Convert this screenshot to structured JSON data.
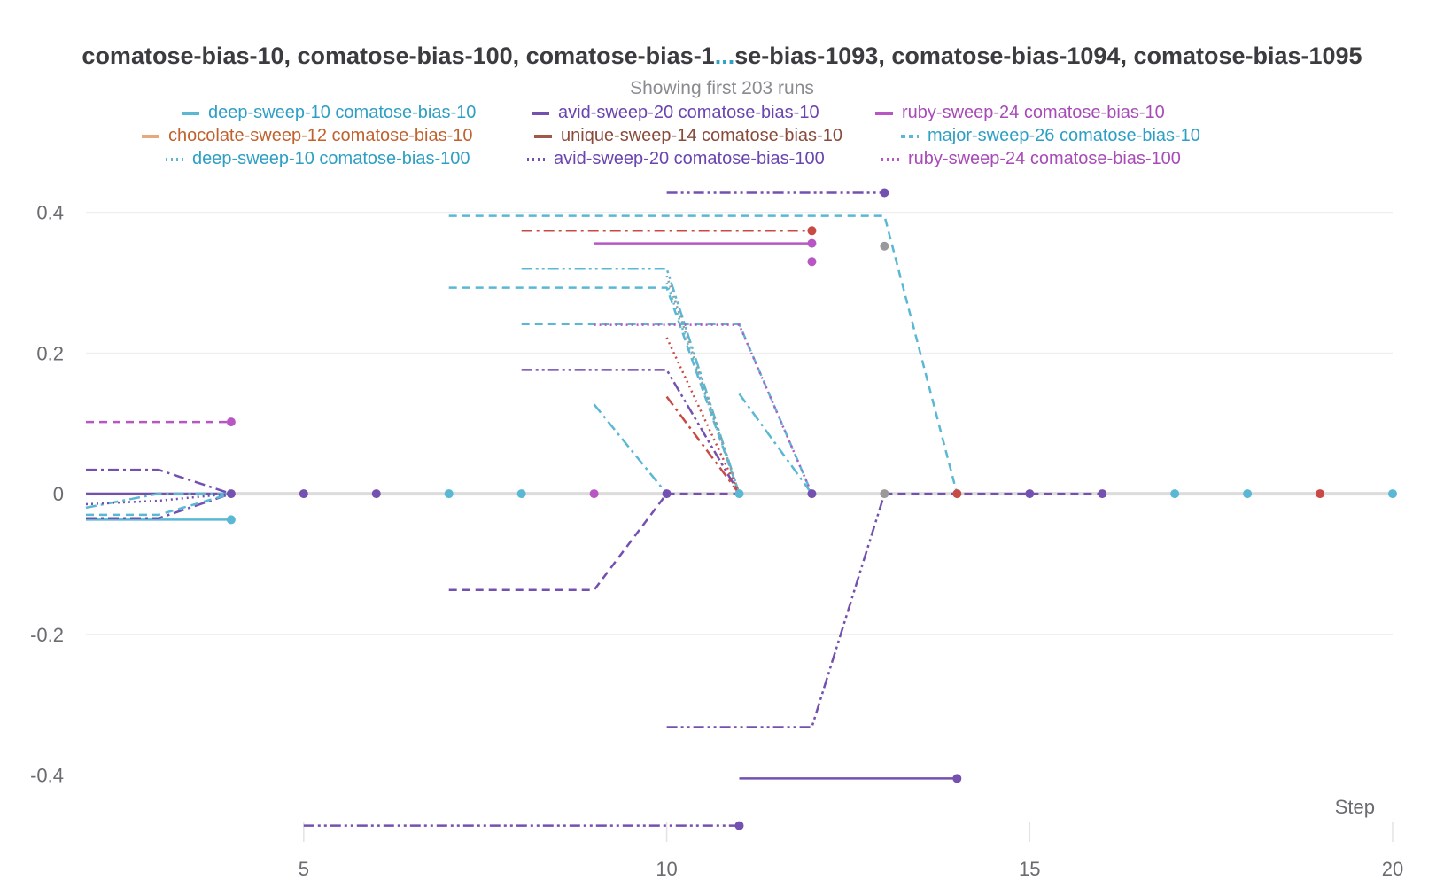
{
  "title_parts": {
    "left": "comatose-bias-10, comatose-bias-100, comatose-bias-1",
    "ellipsis": "...",
    "right": "se-bias-1093, comatose-bias-1094, comatose-bias-1095"
  },
  "subtitle": "Showing first 203 runs",
  "legend": [
    {
      "label": "deep-sweep-10 comatose-bias-10",
      "color": "#5bb8d4",
      "dash": "solid"
    },
    {
      "label": "avid-sweep-20 comatose-bias-10",
      "color": "#7451b0",
      "dash": "solid"
    },
    {
      "label": "ruby-sweep-24 comatose-bias-10",
      "color": "#b857c4",
      "dash": "solid"
    },
    {
      "label": "chocolate-sweep-12 comatose-bias-10",
      "color": "#e8a87c",
      "dash": "solid"
    },
    {
      "label": "unique-sweep-14 comatose-bias-10",
      "color": "#a05a4a",
      "dash": "solid"
    },
    {
      "label": "major-sweep-26 comatose-bias-10",
      "color": "#5bb8d4",
      "dash": "dashed"
    },
    {
      "label": "deep-sweep-10 comatose-bias-100",
      "color": "#5bb8d4",
      "dash": "dotted"
    },
    {
      "label": "avid-sweep-20 comatose-bias-100",
      "color": "#7451b0",
      "dash": "dotted"
    },
    {
      "label": "ruby-sweep-24 comatose-bias-100",
      "color": "#b857c4",
      "dash": "dotted"
    }
  ],
  "legend_text_colors": [
    "#2e9fc4",
    "#6a45b0",
    "#a84bb8",
    "#c0622e",
    "#8a4a3a",
    "#2e9fc4",
    "#2e9fc4",
    "#6a45b0",
    "#a84bb8"
  ],
  "chart_data": {
    "type": "line",
    "xlabel": "Step",
    "ylabel": "",
    "xlim": [
      2,
      20
    ],
    "ylim": [
      -0.47,
      0.45
    ],
    "x_ticks": [
      5,
      10,
      15,
      20
    ],
    "y_ticks": [
      -0.4,
      -0.2,
      0,
      0.2,
      0.4
    ],
    "y_tick_labels": [
      "-0.4",
      "-0.2",
      "0",
      "0.2",
      "0.4"
    ],
    "grid": true,
    "series": [
      {
        "color": "#5bb8d4",
        "dash": "solid",
        "points": [
          [
            2,
            -0.037
          ],
          [
            4,
            -0.037
          ]
        ]
      },
      {
        "color": "#7451b0",
        "dash": "solid",
        "points": [
          [
            2,
            0
          ],
          [
            4,
            0
          ]
        ]
      },
      {
        "color": "#7451b0",
        "dash": "dashdot",
        "points": [
          [
            2,
            0.034
          ],
          [
            3,
            0.034
          ],
          [
            4,
            0
          ]
        ]
      },
      {
        "color": "#7451b0",
        "dash": "dashdot",
        "points": [
          [
            2,
            -0.035
          ],
          [
            3,
            -0.035
          ],
          [
            4,
            0
          ]
        ]
      },
      {
        "color": "#5bb8d4",
        "dash": "dashed",
        "points": [
          [
            2,
            -0.03
          ],
          [
            3,
            -0.03
          ],
          [
            4,
            0
          ]
        ]
      },
      {
        "color": "#5bb8d4",
        "dash": "dashdot",
        "points": [
          [
            2,
            -0.02
          ],
          [
            3,
            0
          ],
          [
            4,
            0
          ]
        ]
      },
      {
        "color": "#7451b0",
        "dash": "dotted",
        "points": [
          [
            2,
            -0.015
          ],
          [
            3,
            -0.01
          ],
          [
            4,
            0
          ]
        ]
      },
      {
        "color": "#b857c4",
        "dash": "dashed",
        "points": [
          [
            2,
            0.102
          ],
          [
            4,
            0.102
          ]
        ]
      },
      {
        "color": "#7451b0",
        "dash": "dashdotdot",
        "points": [
          [
            5,
            -0.472
          ],
          [
            11,
            -0.472
          ]
        ]
      },
      {
        "color": "#7451b0",
        "dash": "dashed",
        "points": [
          [
            7,
            -0.137
          ],
          [
            9,
            -0.137
          ],
          [
            10,
            0
          ],
          [
            11,
            0
          ]
        ]
      },
      {
        "color": "#5bb8d4",
        "dash": "dashed",
        "points": [
          [
            7,
            0.395
          ],
          [
            13,
            0.395
          ],
          [
            14,
            0
          ]
        ]
      },
      {
        "color": "#5bb8d4",
        "dash": "dashed",
        "points": [
          [
            7,
            0.293
          ],
          [
            10,
            0.293
          ],
          [
            11,
            0
          ]
        ]
      },
      {
        "color": "#5bb8d4",
        "dash": "dashed",
        "points": [
          [
            8,
            0.241
          ],
          [
            11,
            0.241
          ],
          [
            12,
            0
          ]
        ]
      },
      {
        "color": "#5bb8d4",
        "dash": "dashdotdot",
        "points": [
          [
            8,
            0.32
          ],
          [
            10,
            0.32
          ],
          [
            11,
            0
          ]
        ]
      },
      {
        "color": "#7451b0",
        "dash": "dashdotdot",
        "points": [
          [
            8,
            0.176
          ],
          [
            10,
            0.176
          ],
          [
            11,
            0
          ]
        ]
      },
      {
        "color": "#c94a45",
        "dash": "dashdot",
        "points": [
          [
            8,
            0.374
          ],
          [
            12,
            0.374
          ]
        ]
      },
      {
        "color": "#b857c4",
        "dash": "solid",
        "points": [
          [
            9,
            0.356
          ],
          [
            12,
            0.356
          ]
        ]
      },
      {
        "color": "#b857c4",
        "dash": "dotted",
        "points": [
          [
            9,
            0.24
          ],
          [
            11,
            0.24
          ],
          [
            12,
            0
          ]
        ]
      },
      {
        "color": "#5bb8d4",
        "dash": "dashdot",
        "points": [
          [
            9,
            0.127
          ],
          [
            10,
            0
          ]
        ]
      },
      {
        "color": "#7451b0",
        "dash": "dashdotdot",
        "points": [
          [
            10,
            0.428
          ],
          [
            13,
            0.428
          ]
        ]
      },
      {
        "color": "#5bb8d4",
        "dash": "dotted",
        "points": [
          [
            10,
            0.3
          ],
          [
            11,
            0
          ]
        ]
      },
      {
        "color": "#9a9a9a",
        "dash": "dotted",
        "points": [
          [
            10,
            0.31
          ],
          [
            11,
            0
          ]
        ]
      },
      {
        "color": "#c94a45",
        "dash": "dotted",
        "points": [
          [
            10,
            0.222
          ],
          [
            11,
            0
          ]
        ]
      },
      {
        "color": "#c94a45",
        "dash": "dashdot",
        "points": [
          [
            10,
            0.138
          ],
          [
            11,
            0
          ]
        ]
      },
      {
        "color": "#7451b0",
        "dash": "dashdotdot",
        "points": [
          [
            10,
            -0.332
          ],
          [
            12,
            -0.332
          ],
          [
            13,
            0
          ]
        ]
      },
      {
        "color": "#5bb8d4",
        "dash": "dashdot",
        "points": [
          [
            11,
            0.142
          ],
          [
            12,
            0
          ]
        ]
      },
      {
        "color": "#7451b0",
        "dash": "solid",
        "points": [
          [
            11,
            -0.405
          ],
          [
            14,
            -0.405
          ]
        ]
      },
      {
        "color": "#7451b0",
        "dash": "dashed",
        "points": [
          [
            13,
            0
          ],
          [
            16,
            0
          ]
        ]
      }
    ],
    "markers": [
      {
        "x": 4,
        "y": 0,
        "color": "#7451b0"
      },
      {
        "x": 5,
        "y": 0,
        "color": "#7451b0"
      },
      {
        "x": 6,
        "y": 0,
        "color": "#7451b0"
      },
      {
        "x": 7,
        "y": 0,
        "color": "#5bb8d4"
      },
      {
        "x": 8,
        "y": 0,
        "color": "#5bb8d4"
      },
      {
        "x": 9,
        "y": 0,
        "color": "#b857c4"
      },
      {
        "x": 10,
        "y": 0,
        "color": "#7451b0"
      },
      {
        "x": 11,
        "y": 0,
        "color": "#5bb8d4"
      },
      {
        "x": 12,
        "y": 0,
        "color": "#7451b0"
      },
      {
        "x": 13,
        "y": 0,
        "color": "#9a9a9a"
      },
      {
        "x": 14,
        "y": 0,
        "color": "#c94a45"
      },
      {
        "x": 15,
        "y": 0,
        "color": "#7451b0"
      },
      {
        "x": 16,
        "y": 0,
        "color": "#7451b0"
      },
      {
        "x": 17,
        "y": 0,
        "color": "#5bb8d4"
      },
      {
        "x": 18,
        "y": 0,
        "color": "#5bb8d4"
      },
      {
        "x": 19,
        "y": 0,
        "color": "#c94a45"
      },
      {
        "x": 20,
        "y": 0,
        "color": "#5bb8d4"
      },
      {
        "x": 4,
        "y": -0.037,
        "color": "#5bb8d4"
      },
      {
        "x": 4,
        "y": 0.102,
        "color": "#b857c4"
      },
      {
        "x": 11,
        "y": -0.472,
        "color": "#7451b0"
      },
      {
        "x": 12,
        "y": 0.374,
        "color": "#c94a45"
      },
      {
        "x": 12,
        "y": 0.356,
        "color": "#b857c4"
      },
      {
        "x": 12,
        "y": 0.33,
        "color": "#b857c4"
      },
      {
        "x": 13,
        "y": 0.428,
        "color": "#7451b0"
      },
      {
        "x": 13,
        "y": 0.352,
        "color": "#9a9a9a"
      },
      {
        "x": 14,
        "y": -0.405,
        "color": "#7451b0"
      }
    ]
  }
}
